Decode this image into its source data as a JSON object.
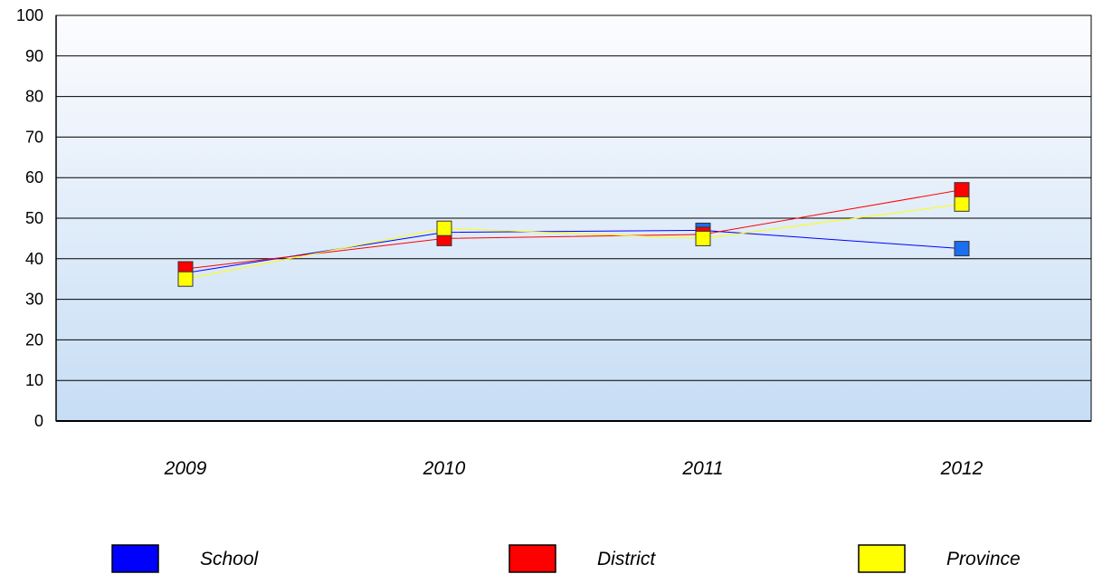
{
  "chart_data": {
    "type": "line",
    "categories": [
      "2009",
      "2010",
      "2011",
      "2012"
    ],
    "ylim": [
      0,
      100
    ],
    "yticks": [
      0,
      10,
      20,
      30,
      40,
      50,
      60,
      70,
      80,
      90,
      100
    ],
    "grid": true,
    "legend_position": "bottom",
    "series": [
      {
        "name": "School",
        "values": [
          36.5,
          46.5,
          47,
          42.5
        ],
        "color": "#0000ff",
        "marker_color": "#1a6ef0"
      },
      {
        "name": "District",
        "values": [
          37.5,
          45,
          46,
          57
        ],
        "color": "#ff0000",
        "marker_color": "#ff0000"
      },
      {
        "name": "Province",
        "values": [
          35,
          47.5,
          45,
          53.5
        ],
        "color": "#ffff00",
        "marker_color": "#ffff00"
      }
    ],
    "legend_colors": [
      "#0000ff",
      "#ff0000",
      "#ffff00"
    ]
  }
}
